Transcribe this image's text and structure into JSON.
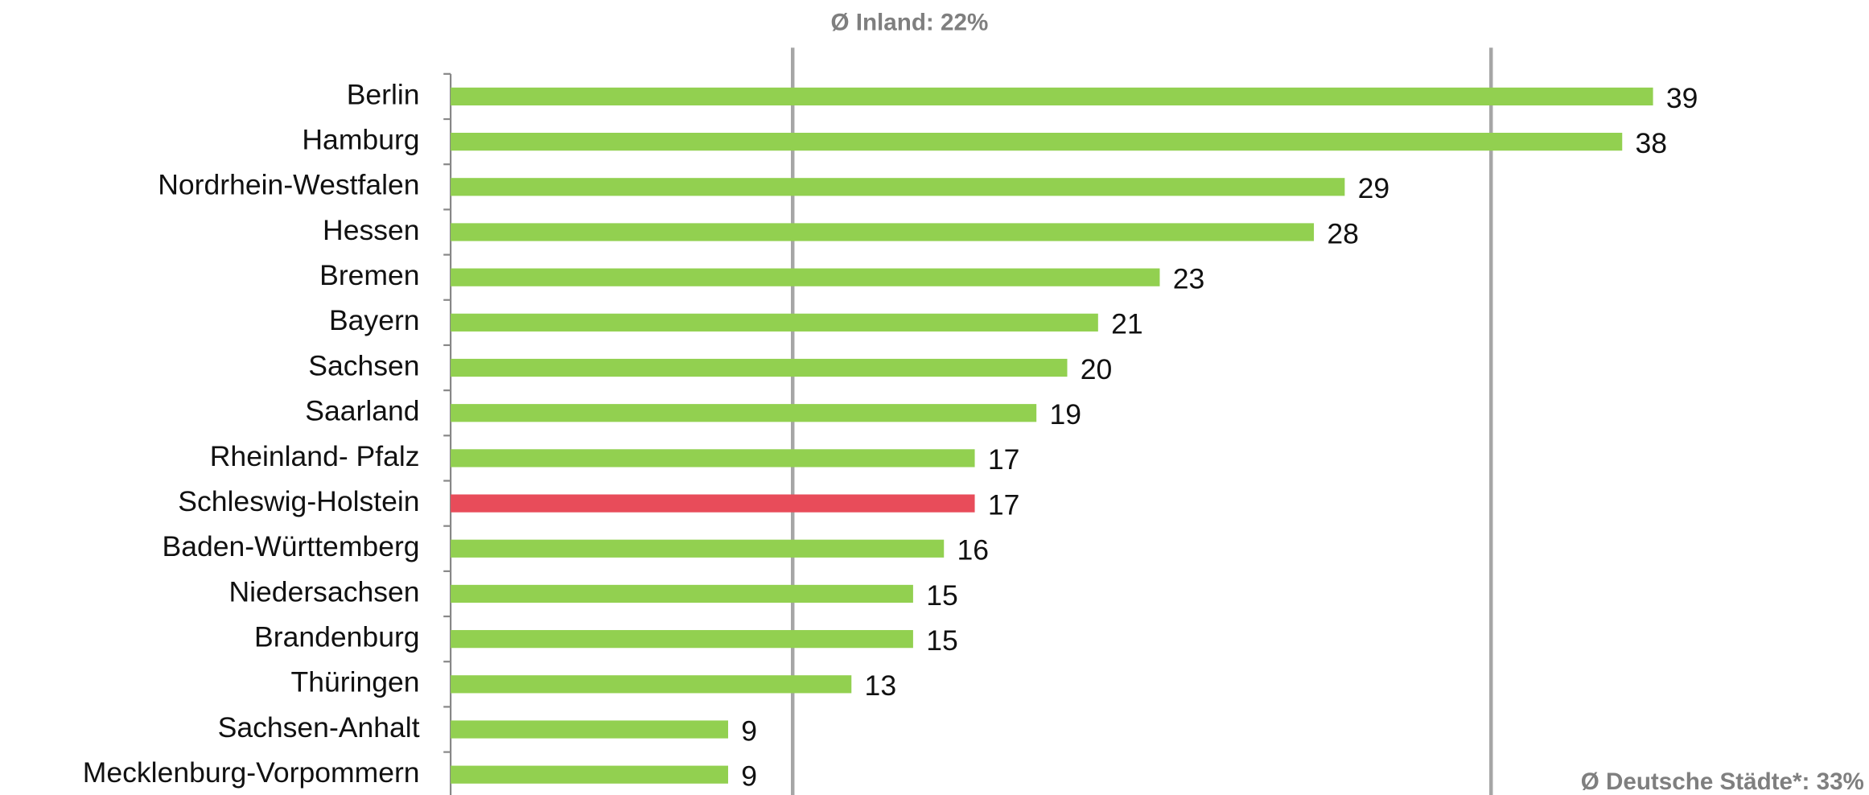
{
  "chart_data": {
    "type": "barh",
    "categories": [
      "Berlin",
      "Hamburg",
      "Nordrhein-Westfalen",
      "Hessen",
      "Bremen",
      "Bayern",
      "Sachsen",
      "Saarland",
      "Rheinland- Pfalz",
      "Schleswig-Holstein",
      "Baden-Württemberg",
      "Niedersachsen",
      "Brandenburg",
      "Thüringen",
      "Sachsen-Anhalt",
      "Mecklenburg-Vorpommern"
    ],
    "values": [
      39,
      38,
      29,
      28,
      23,
      21,
      20,
      19,
      17,
      17,
      16,
      15,
      15,
      13,
      9,
      9
    ],
    "colors": [
      "#92d050",
      "#92d050",
      "#92d050",
      "#92d050",
      "#92d050",
      "#92d050",
      "#92d050",
      "#92d050",
      "#92d050",
      "#e84c5a",
      "#92d050",
      "#92d050",
      "#92d050",
      "#92d050",
      "#92d050",
      "#92d050"
    ],
    "xlim": [
      0,
      46
    ],
    "annotations": [
      "Ø Inland: 22%",
      "Ø Deutsche Städte*: 33%"
    ]
  }
}
